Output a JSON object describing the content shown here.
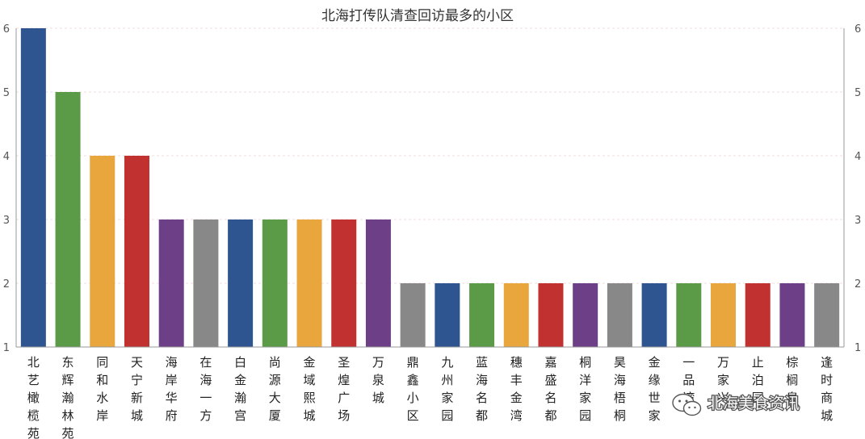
{
  "chart_data": {
    "type": "bar",
    "title": "北海打传队清查回访最多的小区",
    "xlabel": "",
    "ylabel": "",
    "ylim": [
      1,
      6
    ],
    "yticks": [
      1,
      2,
      3,
      4,
      5,
      6
    ],
    "grid": true,
    "legend": "none",
    "categories": [
      "北艺橄榄苑",
      "东辉瀚林苑",
      "同和水岸",
      "天宁新城",
      "海岸华府",
      "在海一方",
      "白金瀚宫",
      "尚源大厦",
      "金域熙城",
      "圣煌广场",
      "万泉城",
      "鼎鑫小区",
      "九州家园",
      "蓝海名都",
      "穗丰金湾",
      "嘉盛名都",
      "桐洋家园",
      "昊海梧桐",
      "金缘世家",
      "一品湾",
      "万家兴",
      "止泊园",
      "棕榈泉",
      "逢时商城"
    ],
    "values": [
      6,
      5,
      4,
      4,
      3,
      3,
      3,
      3,
      3,
      3,
      3,
      2,
      2,
      2,
      2,
      2,
      2,
      2,
      2,
      2,
      2,
      2,
      2,
      2
    ],
    "colors": [
      "#2e5590",
      "#5b9a46",
      "#e8a63c",
      "#c0312f",
      "#6d3f86",
      "#888888",
      "#2e5590",
      "#5b9a46",
      "#e8a63c",
      "#c0312f",
      "#6d3f86",
      "#888888",
      "#2e5590",
      "#5b9a46",
      "#e8a63c",
      "#c0312f",
      "#6d3f86",
      "#888888",
      "#2e5590",
      "#5b9a46",
      "#e8a63c",
      "#c0312f",
      "#6d3f86",
      "#888888"
    ]
  },
  "watermark": {
    "text": "北海美食资讯",
    "icon": "wechat-icon"
  }
}
